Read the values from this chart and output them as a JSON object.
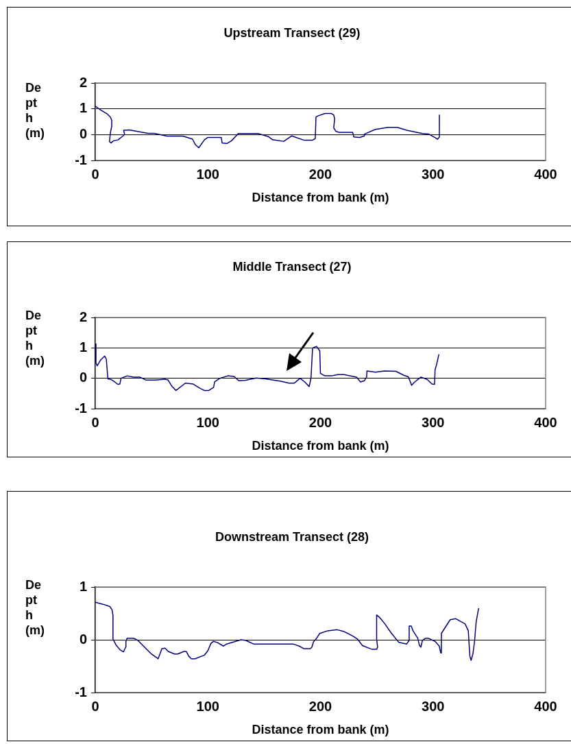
{
  "chart_data": [
    {
      "type": "line",
      "title": "Upstream Transect (29)",
      "xlabel": "Distance from bank (m)",
      "ylabel": "Depth (m)",
      "xlim": [
        0,
        400
      ],
      "xticks": [
        0,
        100,
        200,
        300,
        400
      ],
      "ylim": [
        -1,
        2
      ],
      "yticks": [
        -1,
        0,
        1,
        2
      ],
      "grid": "y",
      "series": [
        {
          "color": "#000080",
          "x": [
            0,
            5,
            10.6,
            13.4,
            14.6,
            14.6,
            13.4,
            12.6,
            14,
            16.2,
            20.4,
            24,
            26,
            25.2,
            30.2,
            47,
            52.4,
            63.9,
            77.8,
            86.3,
            89,
            91.9,
            97,
            100,
            112,
            112.6,
            117,
            121,
            127,
            144.5,
            153.4,
            157.6,
            167.4,
            174.5,
            185.7,
            192.7,
            195.4,
            196,
            198,
            204,
            209.5,
            211.8,
            212.6,
            211.8,
            213.7,
            216.5,
            228.6,
            229.7,
            234.8,
            239,
            239,
            248.7,
            260,
            268.3,
            276.7,
            290.7,
            296.3,
            302,
            304,
            305.6,
            305.6
          ],
          "values": [
            1.1,
            0.95,
            0.8,
            0.68,
            0.56,
            0.32,
            0.07,
            -0.27,
            -0.32,
            -0.24,
            -0.2,
            -0.07,
            0.01,
            0.17,
            0.18,
            0.05,
            0.05,
            -0.06,
            -0.06,
            -0.17,
            -0.39,
            -0.51,
            -0.2,
            -0.11,
            -0.11,
            -0.32,
            -0.34,
            -0.24,
            0.04,
            0.04,
            -0.07,
            -0.2,
            -0.26,
            -0.05,
            -0.22,
            -0.22,
            -0.15,
            0.68,
            0.73,
            0.82,
            0.82,
            0.76,
            0.61,
            0.26,
            0.13,
            0.09,
            0.09,
            -0.09,
            -0.11,
            -0.05,
            0.02,
            0.2,
            0.28,
            0.28,
            0.17,
            0.04,
            0.02,
            -0.12,
            -0.18,
            -0.09,
            0.77
          ]
        }
      ]
    },
    {
      "type": "line",
      "title": "Middle Transect (27)",
      "xlabel": "Distance from bank (m)",
      "ylabel": "Depth (m)",
      "xlim": [
        0,
        400
      ],
      "xticks": [
        0,
        100,
        200,
        300,
        400
      ],
      "ylim": [
        -1,
        2
      ],
      "yticks": [
        -1,
        0,
        1,
        2
      ],
      "grid": "y",
      "series": [
        {
          "color": "#000080",
          "x": [
            0,
            0.6,
            1.7,
            4.7,
            8.4,
            9.8,
            11.2,
            14,
            17.3,
            20,
            21.8,
            22.9,
            28.4,
            34,
            39.6,
            45.2,
            53.6,
            62,
            64.7,
            68,
            71.7,
            80,
            87,
            92.6,
            96.8,
            100.9,
            105.1,
            106,
            110.7,
            117.7,
            123.3,
            127.5,
            133,
            143,
            151,
            165,
            172,
            176.8,
            179,
            181.9,
            186,
            190,
            191.6,
            193,
            196.5,
            199.4,
            200,
            204,
            209.8,
            215.4,
            221,
            232,
            235.5,
            239,
            241,
            241.3,
            248.8,
            257,
            267,
            274,
            278,
            281,
            283.7,
            289.3,
            294.9,
            299,
            301.3,
            301.8,
            303.2,
            305.2
          ],
          "values": [
            1.13,
            0.5,
            0.41,
            0.6,
            0.73,
            0.63,
            -0.02,
            -0.04,
            -0.12,
            -0.2,
            -0.19,
            0,
            0.08,
            0.04,
            0.04,
            -0.06,
            -0.06,
            -0.03,
            -0.06,
            -0.26,
            -0.4,
            -0.16,
            -0.19,
            -0.32,
            -0.4,
            -0.4,
            -0.3,
            -0.12,
            0,
            0.08,
            0.06,
            -0.08,
            -0.07,
            0.01,
            -0.02,
            -0.1,
            -0.16,
            -0.16,
            -0.09,
            0,
            -0.12,
            -0.27,
            0.01,
            1.0,
            1.05,
            0.9,
            0.16,
            0.08,
            0.08,
            0.12,
            0.12,
            0.04,
            -0.12,
            -0.08,
            0.04,
            0.24,
            0.2,
            0.24,
            0.23,
            0.1,
            0.05,
            -0.23,
            -0.12,
            0.04,
            -0.04,
            -0.19,
            -0.2,
            0.28,
            0.46,
            0.79
          ]
        }
      ]
    },
    {
      "type": "line",
      "title": "Downstream Transect (28)",
      "xlabel": "Distance from bank (m)",
      "ylabel": "Depth (m)",
      "xlim": [
        0,
        400
      ],
      "xticks": [
        0,
        100,
        200,
        300,
        400
      ],
      "ylim": [
        -1,
        1
      ],
      "yticks": [
        -1,
        0,
        1
      ],
      "grid": "y",
      "series": [
        {
          "color": "#000080",
          "x": [
            0,
            7.3,
            12.9,
            14.9,
            15.7,
            15.7,
            18.5,
            22,
            25,
            27,
            27.2,
            28.3,
            34,
            37.7,
            49.4,
            55.8,
            59.2,
            62,
            64.8,
            70.4,
            73.2,
            78.8,
            80.8,
            83,
            85.3,
            88.6,
            97,
            99.9,
            102.7,
            104.9,
            108.3,
            113.9,
            116.7,
            129.3,
            133.5,
            140.5,
            175.6,
            181.2,
            185.4,
            191,
            192.4,
            193.8,
            196.6,
            199.4,
            206.4,
            214.8,
            220.4,
            228.8,
            233,
            237.3,
            245.7,
            249.9,
            250.8,
            249.9,
            249.9,
            252.7,
            256.9,
            262.5,
            269.6,
            276.6,
            278.8,
            278.8,
            280.7,
            282.2,
            286.4,
            287.8,
            289.2,
            290.6,
            293.4,
            295.7,
            301.8,
            305.5,
            306.9,
            307.4,
            315.2,
            320,
            328.5,
            331.3,
            332.7,
            333.8,
            335.5,
            336.9,
            338.3,
            340.5
          ],
          "values": [
            0.71,
            0.67,
            0.63,
            0.57,
            0.46,
            0.01,
            -0.1,
            -0.19,
            -0.23,
            -0.14,
            -0.03,
            0.03,
            0.03,
            -0.01,
            -0.26,
            -0.36,
            -0.17,
            -0.16,
            -0.22,
            -0.27,
            -0.27,
            -0.22,
            -0.22,
            -0.31,
            -0.36,
            -0.36,
            -0.29,
            -0.21,
            -0.07,
            -0.03,
            -0.05,
            -0.12,
            -0.08,
            0,
            -0.01,
            -0.08,
            -0.08,
            -0.12,
            -0.17,
            -0.17,
            -0.14,
            -0.04,
            0.03,
            0.12,
            0.17,
            0.19,
            0.16,
            0.07,
            0.01,
            -0.11,
            -0.18,
            -0.18,
            -0.14,
            0.01,
            0.47,
            0.42,
            0.31,
            0.14,
            -0.05,
            -0.08,
            -0.01,
            0.26,
            0.26,
            0.17,
            0.03,
            -0.1,
            -0.14,
            -0.01,
            0.03,
            0.03,
            -0.03,
            -0.12,
            -0.25,
            0.12,
            0.38,
            0.4,
            0.3,
            0.17,
            -0.31,
            -0.39,
            -0.26,
            -0.02,
            0.34,
            0.6
          ]
        }
      ]
    }
  ]
}
